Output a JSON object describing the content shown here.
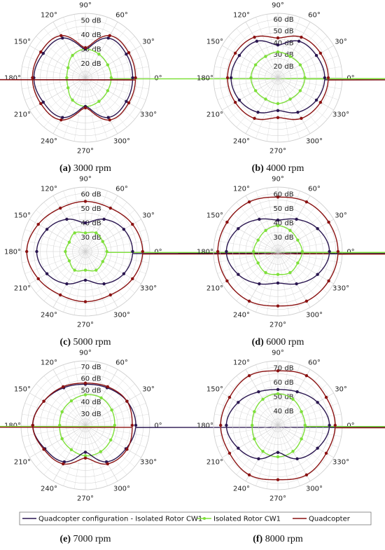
{
  "colors": {
    "quadconf": "#2a1650",
    "isolated": "#7ee03a",
    "quadcopter": "#8b1212",
    "grid": "#cfcfcf"
  },
  "angle_labels": [
    "0°",
    "30°",
    "60°",
    "90°",
    "120°",
    "150°",
    "180°",
    "210°",
    "240°",
    "270°",
    "300°",
    "330°"
  ],
  "legend": {
    "entries": [
      {
        "key": "quadconf",
        "label": "Quadcopter configuration - Isolated Rotor CW1"
      },
      {
        "key": "isolated",
        "label": "Isolated Rotor CW1"
      },
      {
        "key": "quadcopter",
        "label": "Quadcopter"
      }
    ]
  },
  "chart_data": [
    {
      "type": "polar",
      "caption_label": "(a)",
      "caption_text": "3000 rpm",
      "rlim": [
        10,
        55
      ],
      "rticks": [
        20,
        30,
        40,
        50
      ],
      "r_unit": "dB",
      "series": [
        {
          "key": "quadconf",
          "name": "Quadcopter configuration - Isolated Rotor CW1",
          "theta": [
            0,
            30,
            60,
            90,
            120,
            150,
            180,
            210,
            240,
            270,
            300,
            330
          ],
          "r": [
            43,
            43,
            42,
            30,
            42,
            44,
            46,
            44,
            42,
            30,
            42,
            43
          ]
        },
        {
          "key": "isolated",
          "name": "Isolated Rotor CW1",
          "theta": [
            0,
            30,
            60,
            90,
            120,
            150,
            180,
            210,
            240,
            270,
            300,
            330
          ],
          "r": [
            28,
            28,
            29,
            30,
            28,
            24,
            23,
            24,
            28,
            30,
            29,
            28
          ]
        },
        {
          "key": "quadcopter",
          "name": "Quadcopter",
          "theta": [
            0,
            30,
            60,
            90,
            120,
            150,
            180,
            210,
            240,
            270,
            300,
            330
          ],
          "r": [
            45,
            45,
            44,
            31,
            44,
            46,
            47,
            46,
            44,
            31,
            44,
            45
          ]
        }
      ]
    },
    {
      "type": "polar",
      "caption_label": "(b)",
      "caption_text": "4000 rpm",
      "rlim": [
        10,
        65
      ],
      "rticks": [
        20,
        30,
        40,
        50,
        60
      ],
      "r_unit": "dB",
      "series": [
        {
          "key": "quadconf",
          "name": "Quadcopter configuration - Isolated Rotor CW1",
          "theta": [
            0,
            30,
            60,
            90,
            120,
            150,
            180,
            210,
            240,
            270,
            300,
            330
          ],
          "r": [
            50,
            48,
            46,
            38,
            46,
            48,
            50,
            48,
            44,
            38,
            44,
            48
          ]
        },
        {
          "key": "isolated",
          "name": "Isolated Rotor CW1",
          "theta": [
            0,
            30,
            60,
            90,
            120,
            150,
            180,
            210,
            240,
            270,
            300,
            330
          ],
          "r": [
            33,
            32,
            31,
            32,
            31,
            32,
            33,
            32,
            31,
            32,
            31,
            32
          ]
        },
        {
          "key": "quadcopter",
          "name": "Quadcopter",
          "theta": [
            0,
            30,
            60,
            90,
            120,
            150,
            180,
            210,
            240,
            270,
            300,
            330
          ],
          "r": [
            53,
            52,
            50,
            44,
            50,
            52,
            53,
            52,
            50,
            44,
            50,
            52
          ]
        }
      ]
    },
    {
      "type": "polar",
      "caption_label": "(c)",
      "caption_text": "5000 rpm",
      "rlim": [
        20,
        65
      ],
      "rticks": [
        30,
        40,
        50,
        60
      ],
      "r_unit": "dB",
      "series": [
        {
          "key": "quadconf",
          "name": "Quadcopter configuration - Isolated Rotor CW1",
          "theta": [
            0,
            30,
            60,
            90,
            120,
            150,
            180,
            210,
            240,
            270,
            300,
            330
          ],
          "r": [
            53,
            51,
            46,
            40,
            46,
            51,
            54,
            51,
            46,
            40,
            46,
            51
          ]
        },
        {
          "key": "isolated",
          "name": "Isolated Rotor CW1",
          "theta": [
            0,
            30,
            60,
            90,
            120,
            150,
            180,
            210,
            240,
            270,
            300,
            330
          ],
          "r": [
            35,
            34,
            35,
            33,
            35,
            33,
            34,
            33,
            35,
            33,
            35,
            34
          ]
        },
        {
          "key": "quadcopter",
          "name": "Quadcopter",
          "theta": [
            0,
            30,
            60,
            90,
            120,
            150,
            180,
            210,
            240,
            270,
            300,
            330
          ],
          "r": [
            60,
            58,
            55,
            55,
            55,
            58,
            61,
            58,
            55,
            55,
            55,
            58
          ]
        }
      ]
    },
    {
      "type": "polar",
      "caption_label": "(d)",
      "caption_text": "6000 rpm",
      "rlim": [
        20,
        65
      ],
      "rticks": [
        30,
        40,
        50,
        60
      ],
      "r_unit": "dB",
      "series": [
        {
          "key": "quadconf",
          "name": "Quadcopter configuration - Isolated Rotor CW1",
          "theta": [
            0,
            30,
            60,
            90,
            120,
            150,
            180,
            210,
            240,
            270,
            300,
            330
          ],
          "r": [
            56,
            52,
            46,
            42,
            46,
            52,
            56,
            52,
            46,
            42,
            46,
            52
          ]
        },
        {
          "key": "isolated",
          "name": "Isolated Rotor CW1",
          "theta": [
            0,
            30,
            60,
            90,
            120,
            150,
            180,
            210,
            240,
            270,
            300,
            330
          ],
          "r": [
            37,
            36,
            37,
            38,
            37,
            36,
            37,
            36,
            37,
            36,
            37,
            36
          ]
        },
        {
          "key": "quadcopter",
          "name": "Quadcopter",
          "theta": [
            0,
            30,
            60,
            90,
            120,
            150,
            180,
            210,
            240,
            270,
            300,
            330
          ],
          "r": [
            62,
            61,
            60,
            58,
            60,
            61,
            62,
            61,
            60,
            58,
            60,
            61
          ]
        }
      ]
    },
    {
      "type": "polar",
      "caption_label": "(e)",
      "caption_text": "7000 rpm",
      "rlim": [
        20,
        75
      ],
      "rticks": [
        30,
        40,
        50,
        60,
        70
      ],
      "r_unit": "dB",
      "series": [
        {
          "key": "quadconf",
          "name": "Quadcopter configuration - Isolated Rotor CW1",
          "theta": [
            0,
            30,
            60,
            90,
            120,
            150,
            180,
            210,
            240,
            270,
            300,
            330
          ],
          "r": [
            63,
            61,
            57,
            55,
            57,
            61,
            65,
            60,
            56,
            43,
            56,
            60
          ]
        },
        {
          "key": "isolated",
          "name": "Isolated Rotor CW1",
          "theta": [
            0,
            30,
            60,
            90,
            120,
            150,
            180,
            210,
            240,
            270,
            300,
            330
          ],
          "r": [
            45,
            46,
            47,
            46,
            44,
            43,
            42,
            43,
            44,
            46,
            46,
            45
          ]
        },
        {
          "key": "quadcopter",
          "name": "Quadcopter",
          "theta": [
            0,
            30,
            60,
            90,
            120,
            150,
            180,
            210,
            240,
            270,
            300,
            330
          ],
          "r": [
            60,
            61,
            58,
            56,
            58,
            61,
            65,
            61,
            58,
            48,
            58,
            61
          ]
        }
      ]
    },
    {
      "type": "polar",
      "caption_label": "(f)",
      "caption_text": "8000 rpm",
      "rlim": [
        30,
        75
      ],
      "rticks": [
        40,
        50,
        60,
        70
      ],
      "r_unit": "dB",
      "series": [
        {
          "key": "quadconf",
          "name": "Quadcopter configuration - Isolated Rotor CW1",
          "theta": [
            0,
            30,
            60,
            90,
            120,
            150,
            180,
            210,
            240,
            270,
            300,
            330
          ],
          "r": [
            66,
            62,
            57,
            55,
            57,
            62,
            66,
            62,
            57,
            49,
            57,
            62
          ]
        },
        {
          "key": "isolated",
          "name": "Isolated Rotor CW1",
          "theta": [
            0,
            30,
            60,
            90,
            120,
            150,
            180,
            210,
            240,
            270,
            300,
            330
          ],
          "r": [
            49,
            49,
            51,
            52,
            51,
            49,
            48,
            49,
            51,
            52,
            51,
            49
          ]
        },
        {
          "key": "quadcopter",
          "name": "Quadcopter",
          "theta": [
            0,
            30,
            60,
            90,
            120,
            150,
            180,
            210,
            240,
            270,
            300,
            330
          ],
          "r": [
            70,
            69,
            70,
            68,
            70,
            69,
            70,
            69,
            70,
            68,
            70,
            69
          ]
        }
      ]
    }
  ]
}
